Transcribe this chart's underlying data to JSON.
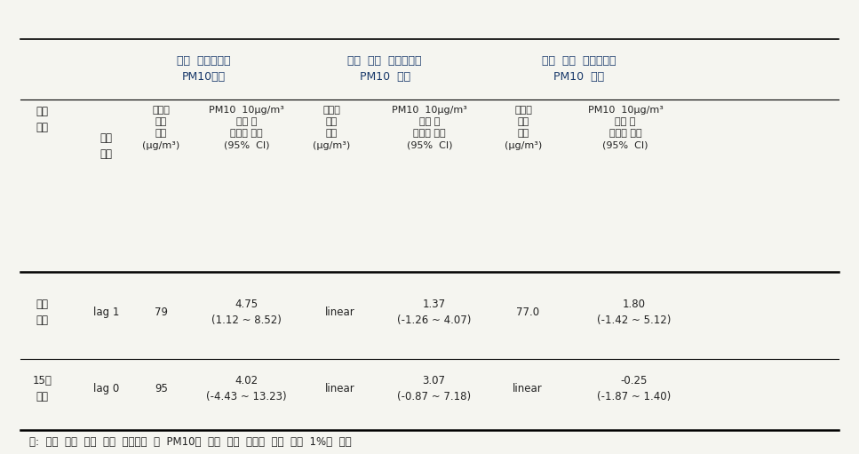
{
  "bg_color": "#f5f5f0",
  "title_color": "#1a3a6b",
  "text_color": "#222222",
  "col_groups": [
    {
      "label": "전체  기온에서의\nPM10효과",
      "color": "#1a3a6b"
    },
    {
      "label": "기온  역치  이상에서의\nPM10  효과",
      "color": "#1a3a6b"
    },
    {
      "label": "기온  역치  미만에서의\nPM10  효과",
      "color": "#1a3a6b"
    }
  ],
  "sub_headers": [
    [
      "인구\n집단",
      "지연\n일수",
      "관련성\n역치\n수준\n(μg/m³)",
      "PM10  10μg/m³\n증가 시\n백분율 변화\n(95%  CI)"
    ],
    [
      "관련성\n역치\n수준\n(μg/m³)",
      "PM10  10μg/m³\n증가 시\n백분율 변화\n(95%  CI)"
    ],
    [
      "관련성\n역치\n수준\n(μg/m³)",
      "PM10  10μg/m³\n증가 시\n백분율 변화\n(95%  CI)"
    ]
  ],
  "data_rows": [
    {
      "group": "전체\n연령",
      "lag": "lag 1",
      "threshold1": "79",
      "effect1": "4.75\n(1.12 ~ 8.52)",
      "threshold2": "linear",
      "effect2": "1.37\n(-1.26 ~ 4.07)",
      "threshold3": "77.0",
      "effect3": "1.80\n(-1.42 ~ 5.12)"
    },
    {
      "group": "15세\n미만",
      "lag": "lag 0",
      "threshold1": "95",
      "effect1": "4.02\n(-4.43 ~ 13.23)",
      "threshold2": "linear",
      "effect2": "3.07\n(-0.87 ~ 7.18)",
      "threshold3": "linear",
      "effect3": "-0.25\n(-1.87 ~ 1.40)"
    }
  ],
  "footnote": "주:  일별  천식  입원  발생  에피소드  및  PM10의  일별  평균  농도에  대한  상위  1%는  제외"
}
